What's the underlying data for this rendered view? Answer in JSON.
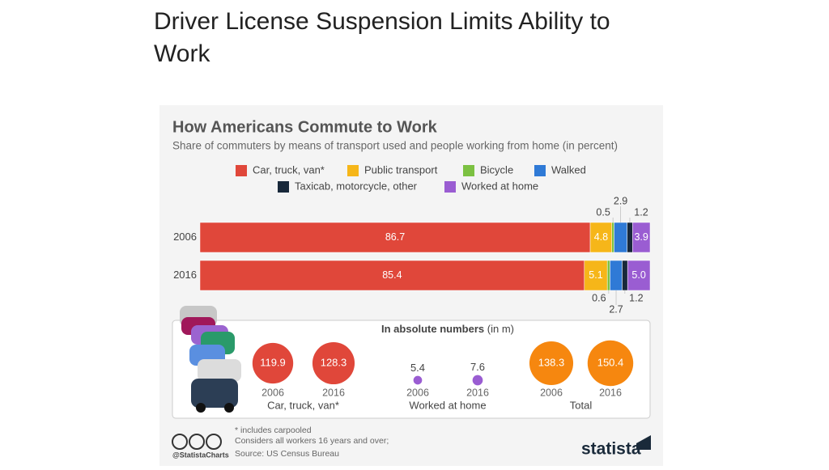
{
  "slide_title": "Driver License Suspension Limits Ability to Work",
  "chart_data": [
    {
      "type": "bar",
      "orientation": "horizontal",
      "stacked": true,
      "title": "How Americans Commute to Work",
      "subtitle": "Share of commuters by means of transport used and people working from home (in percent)",
      "categories": [
        "2006",
        "2016"
      ],
      "xlim": [
        0,
        100
      ],
      "series": [
        {
          "name": "Car, truck, van*",
          "color": "#e0473a",
          "values": [
            86.7,
            85.4
          ]
        },
        {
          "name": "Public transport",
          "color": "#f6b619",
          "values": [
            4.8,
            5.1
          ]
        },
        {
          "name": "Bicycle",
          "color": "#7cc142",
          "values": [
            0.5,
            0.6
          ]
        },
        {
          "name": "Walked",
          "color": "#2f7ad6",
          "values": [
            2.9,
            2.7
          ]
        },
        {
          "name": "Taxicab, motorcycle, other",
          "color": "#18283a",
          "values": [
            1.2,
            1.2
          ]
        },
        {
          "name": "Worked at home",
          "color": "#9a5dd2",
          "values": [
            3.9,
            5.0
          ],
          "value_labels": [
            "3.9",
            "5.0"
          ]
        }
      ]
    },
    {
      "type": "bubble",
      "title": "In absolute numbers",
      "subtitle": "(in m)",
      "groups": [
        {
          "name": "Car, truck, van*",
          "color": "#e0473a",
          "x": [
            "2006",
            "2016"
          ],
          "values": [
            119.9,
            128.3
          ]
        },
        {
          "name": "Worked at home",
          "color": "#9a5dd2",
          "x": [
            "2006",
            "2016"
          ],
          "values": [
            5.4,
            7.6
          ]
        },
        {
          "name": "Total",
          "color": "#f6870f",
          "x": [
            "2006",
            "2016"
          ],
          "values": [
            138.3,
            150.4
          ]
        }
      ]
    }
  ],
  "footer": {
    "notes": [
      "* includes carpooled",
      "Considers all workers 16 years and over;"
    ],
    "source": "Source: US Census Bureau",
    "handle": "@StatistaCharts",
    "brand": "statista"
  }
}
